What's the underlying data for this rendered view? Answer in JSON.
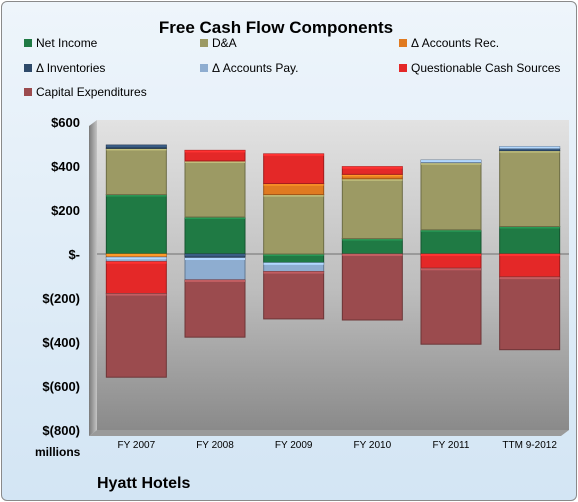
{
  "chart_data": {
    "type": "bar",
    "stacked": true,
    "title": "Free Cash Flow Components",
    "units_label": "millions",
    "company": "Hyatt Hotels",
    "categories": [
      "FY 2007",
      "FY 2008",
      "FY 2009",
      "FY 2010",
      "FY 2011",
      "TTM 9-2012"
    ],
    "ylim": [
      -800,
      600
    ],
    "yticks": [
      -800,
      -600,
      -400,
      -200,
      0,
      200,
      400,
      600
    ],
    "ytick_labels": [
      "$(800)",
      "$(600)",
      "$(400)",
      "$(200)",
      "$-",
      "$200",
      "$400",
      "$600"
    ],
    "grid": false,
    "legend_position": "top",
    "series": [
      {
        "name": "Net Income",
        "color": "#1f7a44",
        "values": [
          270,
          168,
          -40,
          70,
          110,
          125
        ]
      },
      {
        "name": "D&A",
        "color": "#9c9a64",
        "values": [
          210,
          255,
          270,
          272,
          305,
          345
        ]
      },
      {
        "name": "Δ Accounts Rec.",
        "color": "#e07a20",
        "values": [
          -15,
          0,
          50,
          20,
          0,
          0
        ]
      },
      {
        "name": "Δ Inventories",
        "color": "#2e4a6a",
        "values": [
          15,
          -18,
          0,
          0,
          0,
          10
        ]
      },
      {
        "name": "Δ Accounts Pay.",
        "color": "#8eadd0",
        "values": [
          -20,
          -100,
          -40,
          0,
          12,
          8
        ]
      },
      {
        "name": "Questionable Cash Sources",
        "color": "#e42828",
        "values": [
          -145,
          48,
          135,
          35,
          0,
          0
        ]
      },
      {
        "name": "Capital Expenditures",
        "color": "#9b4b4e",
        "values": [
          -380,
          -260,
          -215,
          -300,
          -345,
          -330
        ]
      }
    ],
    "extra_negative_segments": [
      {
        "series": "Questionable Cash Sources",
        "values": [
          0,
          0,
          0,
          0,
          -65,
          -105
        ]
      }
    ]
  }
}
